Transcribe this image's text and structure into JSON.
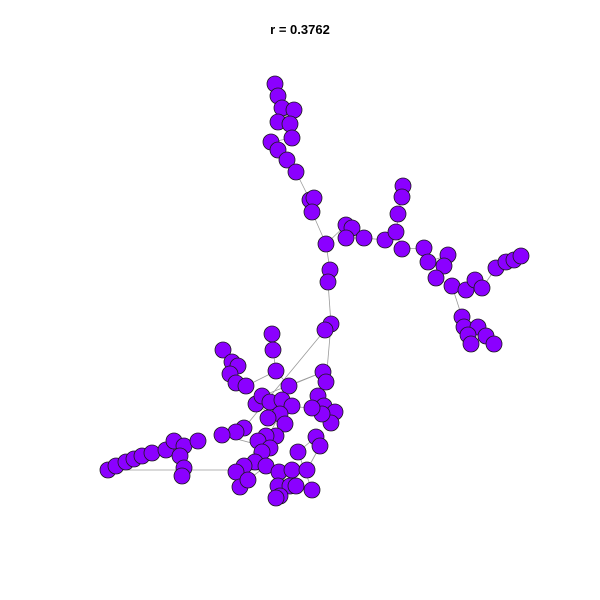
{
  "title": "r = 0.3762",
  "colors": {
    "node_fill": "#8B00FF",
    "node_stroke": "#1a1a1a",
    "edge": "#9a9a9a"
  }
}
